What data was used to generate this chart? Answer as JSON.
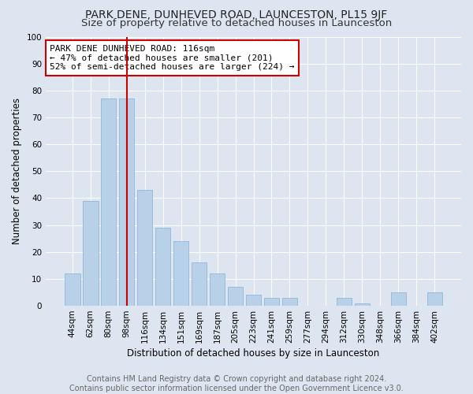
{
  "title": "PARK DENE, DUNHEVED ROAD, LAUNCESTON, PL15 9JF",
  "subtitle": "Size of property relative to detached houses in Launceston",
  "xlabel": "Distribution of detached houses by size in Launceston",
  "ylabel": "Number of detached properties",
  "footer_line1": "Contains HM Land Registry data © Crown copyright and database right 2024.",
  "footer_line2": "Contains public sector information licensed under the Open Government Licence v3.0.",
  "categories": [
    "44sqm",
    "62sqm",
    "80sqm",
    "98sqm",
    "116sqm",
    "134sqm",
    "151sqm",
    "169sqm",
    "187sqm",
    "205sqm",
    "223sqm",
    "241sqm",
    "259sqm",
    "277sqm",
    "294sqm",
    "312sqm",
    "330sqm",
    "348sqm",
    "366sqm",
    "384sqm",
    "402sqm"
  ],
  "values": [
    12,
    39,
    77,
    77,
    43,
    29,
    24,
    16,
    12,
    7,
    4,
    3,
    3,
    0,
    0,
    3,
    1,
    0,
    5,
    0,
    5
  ],
  "bar_color": "#b8d0e8",
  "bar_edge_color": "#8fb8d8",
  "vline_x_index": 3,
  "vline_color": "#cc0000",
  "annotation_text": "PARK DENE DUNHEVED ROAD: 116sqm\n← 47% of detached houses are smaller (201)\n52% of semi-detached houses are larger (224) →",
  "annotation_box_facecolor": "#ffffff",
  "annotation_box_edgecolor": "#cc0000",
  "ylim": [
    0,
    100
  ],
  "yticks": [
    0,
    10,
    20,
    30,
    40,
    50,
    60,
    70,
    80,
    90,
    100
  ],
  "background_color": "#dde6f0",
  "plot_bg_color": "#dde6f0",
  "title_fontsize": 10,
  "subtitle_fontsize": 9.5,
  "xlabel_fontsize": 8.5,
  "ylabel_fontsize": 8.5,
  "tick_fontsize": 7.5,
  "annotation_fontsize": 8,
  "footer_fontsize": 7
}
